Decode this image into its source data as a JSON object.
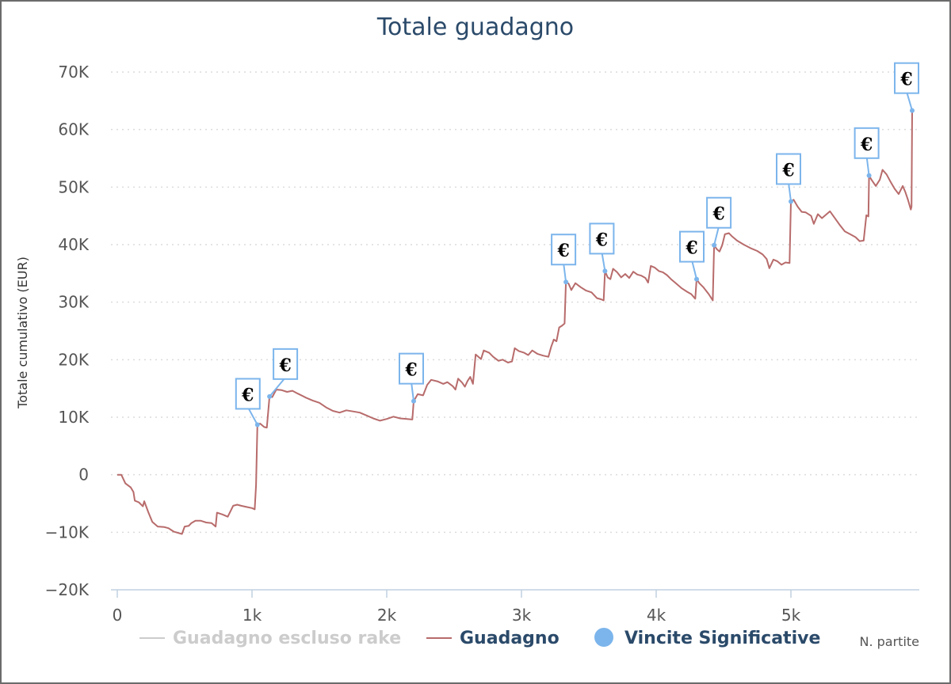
{
  "chart_data": {
    "type": "line",
    "title": "Totale guadagno",
    "ylabel": "Totale cumulativo (EUR)",
    "xlabel": "N. partite",
    "xlim": [
      0,
      5950
    ],
    "ylim": [
      -20000,
      70000
    ],
    "x_ticks": [
      {
        "value": 0,
        "label": "0"
      },
      {
        "value": 1000,
        "label": "1k"
      },
      {
        "value": 2000,
        "label": "2k"
      },
      {
        "value": 3000,
        "label": "3k"
      },
      {
        "value": 4000,
        "label": "4k"
      },
      {
        "value": 5000,
        "label": "5k"
      }
    ],
    "y_ticks": [
      {
        "value": 70000,
        "label": "70K"
      },
      {
        "value": 60000,
        "label": "60K"
      },
      {
        "value": 50000,
        "label": "50K"
      },
      {
        "value": 40000,
        "label": "40K"
      },
      {
        "value": 30000,
        "label": "30K"
      },
      {
        "value": 20000,
        "label": "20K"
      },
      {
        "value": 10000,
        "label": "10K"
      },
      {
        "value": 0,
        "label": "0"
      },
      {
        "value": -10000,
        "label": "−10K"
      },
      {
        "value": -20000,
        "label": "−20K"
      }
    ],
    "grid": "horizontal dotted",
    "legend_position": "bottom",
    "legend": [
      {
        "name": "Guadagno escluso rake",
        "symbol": "line",
        "color": "#cccccc",
        "enabled": false
      },
      {
        "name": "Guadagno",
        "symbol": "line",
        "color": "#b86b6b",
        "enabled": true
      },
      {
        "name": "Vincite Significative",
        "symbol": "circle",
        "color": "#7cb5ec",
        "enabled": true
      }
    ],
    "series": [
      {
        "name": "Guadagno",
        "color": "#b86b6b",
        "points": [
          [
            0,
            0
          ],
          [
            30,
            0
          ],
          [
            60,
            -1500
          ],
          [
            100,
            -2200
          ],
          [
            120,
            -3000
          ],
          [
            130,
            -4500
          ],
          [
            160,
            -4800
          ],
          [
            190,
            -5500
          ],
          [
            200,
            -4600
          ],
          [
            230,
            -6500
          ],
          [
            260,
            -8200
          ],
          [
            300,
            -9000
          ],
          [
            350,
            -9100
          ],
          [
            380,
            -9300
          ],
          [
            420,
            -9900
          ],
          [
            480,
            -10300
          ],
          [
            500,
            -9000
          ],
          [
            530,
            -8900
          ],
          [
            550,
            -8400
          ],
          [
            580,
            -8000
          ],
          [
            620,
            -8000
          ],
          [
            660,
            -8300
          ],
          [
            700,
            -8400
          ],
          [
            730,
            -9000
          ],
          [
            740,
            -6600
          ],
          [
            780,
            -6900
          ],
          [
            820,
            -7300
          ],
          [
            860,
            -5400
          ],
          [
            890,
            -5200
          ],
          [
            920,
            -5400
          ],
          [
            960,
            -5600
          ],
          [
            1000,
            -5800
          ],
          [
            1020,
            -6000
          ],
          [
            1030,
            -1800
          ],
          [
            1040,
            8700
          ],
          [
            1060,
            8900
          ],
          [
            1090,
            8300
          ],
          [
            1110,
            8200
          ],
          [
            1130,
            13600
          ],
          [
            1150,
            13500
          ],
          [
            1180,
            14800
          ],
          [
            1220,
            14700
          ],
          [
            1260,
            14400
          ],
          [
            1300,
            14600
          ],
          [
            1340,
            14100
          ],
          [
            1400,
            13400
          ],
          [
            1450,
            12900
          ],
          [
            1500,
            12500
          ],
          [
            1550,
            11700
          ],
          [
            1600,
            11100
          ],
          [
            1650,
            10800
          ],
          [
            1700,
            11200
          ],
          [
            1750,
            11000
          ],
          [
            1800,
            10800
          ],
          [
            1850,
            10300
          ],
          [
            1900,
            9800
          ],
          [
            1950,
            9400
          ],
          [
            2000,
            9700
          ],
          [
            2050,
            10100
          ],
          [
            2100,
            9800
          ],
          [
            2150,
            9700
          ],
          [
            2190,
            9600
          ],
          [
            2200,
            12800
          ],
          [
            2230,
            14000
          ],
          [
            2270,
            13800
          ],
          [
            2300,
            15600
          ],
          [
            2330,
            16500
          ],
          [
            2380,
            16200
          ],
          [
            2420,
            15800
          ],
          [
            2450,
            16100
          ],
          [
            2490,
            15400
          ],
          [
            2510,
            14800
          ],
          [
            2530,
            16700
          ],
          [
            2560,
            16000
          ],
          [
            2580,
            15300
          ],
          [
            2600,
            16300
          ],
          [
            2620,
            17000
          ],
          [
            2640,
            15800
          ],
          [
            2660,
            20900
          ],
          [
            2700,
            20100
          ],
          [
            2720,
            21600
          ],
          [
            2760,
            21200
          ],
          [
            2790,
            20500
          ],
          [
            2830,
            19800
          ],
          [
            2860,
            20000
          ],
          [
            2900,
            19500
          ],
          [
            2930,
            19700
          ],
          [
            2950,
            22000
          ],
          [
            2980,
            21500
          ],
          [
            3020,
            21200
          ],
          [
            3050,
            20800
          ],
          [
            3080,
            21600
          ],
          [
            3120,
            21000
          ],
          [
            3160,
            20700
          ],
          [
            3200,
            20500
          ],
          [
            3220,
            22200
          ],
          [
            3240,
            23500
          ],
          [
            3260,
            23200
          ],
          [
            3280,
            25600
          ],
          [
            3300,
            25900
          ],
          [
            3320,
            26300
          ],
          [
            3330,
            33500
          ],
          [
            3350,
            33200
          ],
          [
            3370,
            32100
          ],
          [
            3400,
            33300
          ],
          [
            3440,
            32600
          ],
          [
            3480,
            32000
          ],
          [
            3520,
            31700
          ],
          [
            3560,
            30700
          ],
          [
            3590,
            30500
          ],
          [
            3610,
            30300
          ],
          [
            3620,
            35400
          ],
          [
            3640,
            34300
          ],
          [
            3660,
            34000
          ],
          [
            3680,
            35800
          ],
          [
            3710,
            35200
          ],
          [
            3740,
            34300
          ],
          [
            3770,
            34900
          ],
          [
            3800,
            34200
          ],
          [
            3830,
            35300
          ],
          [
            3860,
            34800
          ],
          [
            3890,
            34600
          ],
          [
            3920,
            34200
          ],
          [
            3940,
            33400
          ],
          [
            3960,
            36300
          ],
          [
            3990,
            36000
          ],
          [
            4020,
            35400
          ],
          [
            4050,
            35200
          ],
          [
            4080,
            34700
          ],
          [
            4110,
            34000
          ],
          [
            4150,
            33200
          ],
          [
            4190,
            32400
          ],
          [
            4230,
            31800
          ],
          [
            4260,
            31400
          ],
          [
            4290,
            30600
          ],
          [
            4300,
            34000
          ],
          [
            4320,
            33300
          ],
          [
            4350,
            32600
          ],
          [
            4390,
            31400
          ],
          [
            4420,
            30300
          ],
          [
            4430,
            39900
          ],
          [
            4450,
            39200
          ],
          [
            4470,
            38800
          ],
          [
            4490,
            39900
          ],
          [
            4510,
            41800
          ],
          [
            4540,
            42000
          ],
          [
            4560,
            41500
          ],
          [
            4600,
            40700
          ],
          [
            4650,
            40000
          ],
          [
            4700,
            39400
          ],
          [
            4750,
            38900
          ],
          [
            4790,
            38300
          ],
          [
            4820,
            37500
          ],
          [
            4840,
            35900
          ],
          [
            4870,
            37400
          ],
          [
            4900,
            37100
          ],
          [
            4930,
            36500
          ],
          [
            4960,
            36900
          ],
          [
            4990,
            36800
          ],
          [
            5000,
            47500
          ],
          [
            5020,
            47800
          ],
          [
            5050,
            46600
          ],
          [
            5080,
            45700
          ],
          [
            5110,
            45600
          ],
          [
            5150,
            45000
          ],
          [
            5170,
            43600
          ],
          [
            5200,
            45300
          ],
          [
            5230,
            44600
          ],
          [
            5260,
            45200
          ],
          [
            5290,
            45800
          ],
          [
            5320,
            44800
          ],
          [
            5360,
            43500
          ],
          [
            5400,
            42300
          ],
          [
            5440,
            41800
          ],
          [
            5480,
            41300
          ],
          [
            5510,
            40600
          ],
          [
            5540,
            40700
          ],
          [
            5560,
            45100
          ],
          [
            5575,
            44900
          ],
          [
            5580,
            52000
          ],
          [
            5600,
            51200
          ],
          [
            5630,
            50200
          ],
          [
            5660,
            51300
          ],
          [
            5680,
            53000
          ],
          [
            5710,
            52200
          ],
          [
            5740,
            50900
          ],
          [
            5770,
            49700
          ],
          [
            5800,
            48800
          ],
          [
            5830,
            50200
          ],
          [
            5850,
            49100
          ],
          [
            5870,
            47700
          ],
          [
            5890,
            46100
          ],
          [
            5895,
            46600
          ],
          [
            5900,
            63300
          ]
        ]
      },
      {
        "name": "Vincite Significative",
        "color": "#7cb5ec",
        "points": [
          [
            1040,
            8700
          ],
          [
            1130,
            13600
          ],
          [
            2200,
            12800
          ],
          [
            3330,
            33500
          ],
          [
            3620,
            35400
          ],
          [
            4300,
            34000
          ],
          [
            4430,
            39900
          ],
          [
            5000,
            47500
          ],
          [
            5580,
            52000
          ],
          [
            5900,
            63300
          ]
        ],
        "marker_label": "€"
      }
    ]
  }
}
